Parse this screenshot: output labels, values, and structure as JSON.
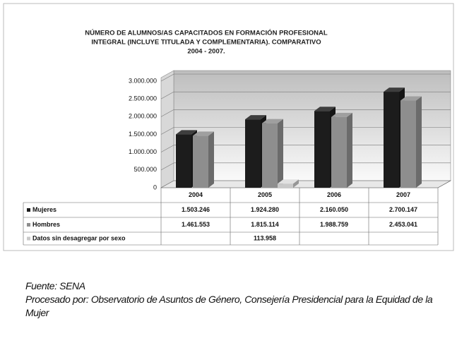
{
  "chart_data": {
    "type": "bar",
    "title": [
      "NÚMERO DE ALUMNOS/AS CAPACITADOS EN FORMACIÓN PROFESIONAL",
      "INTEGRAL (INCLUYE TITULADA Y COMPLEMENTARIA). COMPARATIVO",
      "2004 - 2007."
    ],
    "categories": [
      "2004",
      "2005",
      "2006",
      "2007"
    ],
    "series": [
      {
        "name": "Mujeres",
        "color": "#1c1c1c",
        "values": [
          1503246,
          1924280,
          2160050,
          2700147
        ],
        "value_labels": [
          "1.503.246",
          "1.924.280",
          "2.160.050",
          "2.700.147"
        ]
      },
      {
        "name": "Hombres",
        "color": "#8e8e8e",
        "values": [
          1461553,
          1815114,
          1988759,
          2453041
        ],
        "value_labels": [
          "1.461.553",
          "1.815.114",
          "1.988.759",
          "2.453.041"
        ]
      },
      {
        "name": "Datos sin desagregar por sexo",
        "color": "#c9c9c9",
        "values": [
          null,
          113958,
          null,
          null
        ],
        "value_labels": [
          null,
          "113.958",
          null,
          null
        ]
      }
    ],
    "ylim": [
      0,
      3000000
    ],
    "yticks": [
      0,
      {
        "value": 500000,
        "label": "500.000"
      },
      {
        "value": 1000000,
        "label": "1.000.000"
      },
      {
        "value": 1500000,
        "label": "1.500.000"
      },
      {
        "value": 2000000,
        "label": "2.000.000"
      },
      {
        "value": 2500000,
        "label": "2.500.000"
      },
      {
        "value": 3000000,
        "label": "3.000.000"
      }
    ],
    "grid": true
  },
  "source": {
    "fuente": "Fuente: SENA",
    "procesado": "Procesado por: Observatorio de Asuntos de Género, Consejería Presidencial para la Equidad de la Mujer"
  }
}
